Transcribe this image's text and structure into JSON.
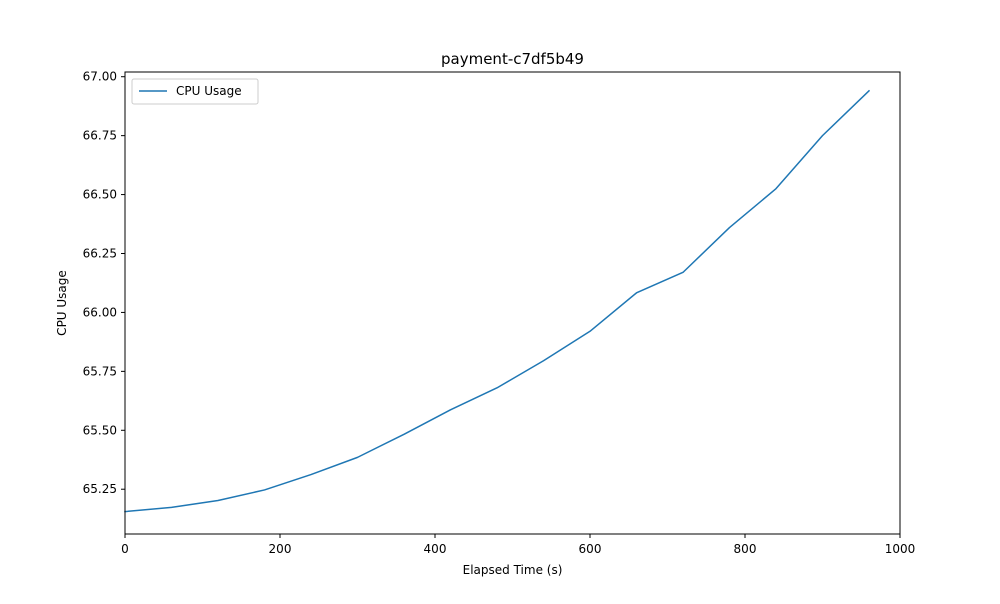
{
  "chart_data": {
    "type": "line",
    "title": "payment-c7df5b49",
    "xlabel": "Elapsed Time (s)",
    "ylabel": "CPU Usage",
    "xlim": [
      0,
      1000
    ],
    "ylim": [
      65.06,
      67.02
    ],
    "xticks": [
      0,
      200,
      400,
      600,
      800,
      1000
    ],
    "xtick_labels": [
      "0",
      "200",
      "400",
      "600",
      "800",
      "1000"
    ],
    "yticks": [
      65.25,
      65.5,
      65.75,
      66.0,
      66.25,
      66.5,
      66.75,
      67.0
    ],
    "ytick_labels": [
      "65.25",
      "65.50",
      "65.75",
      "66.00",
      "66.25",
      "66.50",
      "66.75",
      "67.00"
    ],
    "grid": false,
    "legend_position": "top-left",
    "series": [
      {
        "name": "CPU Usage",
        "color": "#1f77b4",
        "x": [
          0,
          60,
          120,
          180,
          240,
          300,
          360,
          420,
          480,
          540,
          600,
          660,
          720,
          780,
          840,
          900,
          960
        ],
        "y": [
          65.155,
          65.173,
          65.202,
          65.247,
          65.312,
          65.385,
          65.483,
          65.587,
          65.68,
          65.795,
          65.92,
          66.083,
          66.17,
          66.36,
          66.525,
          66.75,
          66.94
        ]
      }
    ]
  }
}
